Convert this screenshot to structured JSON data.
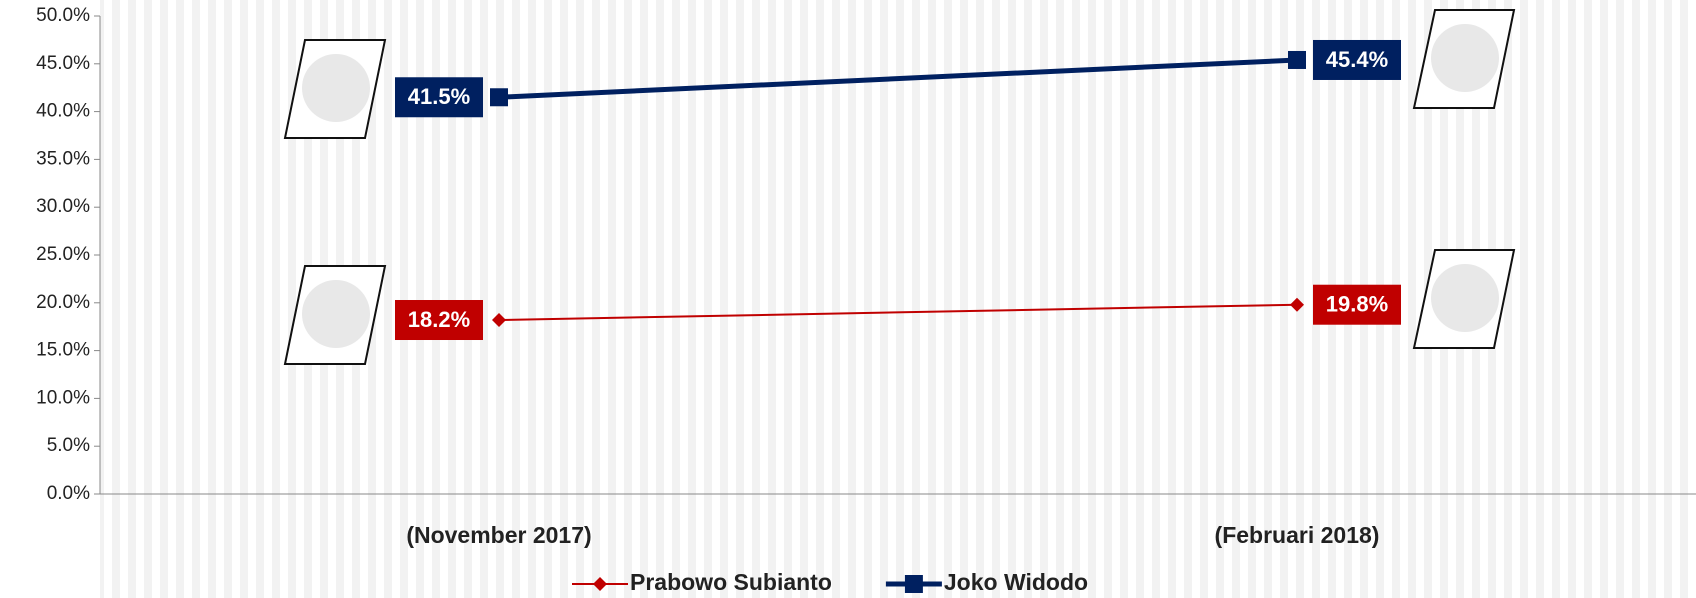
{
  "chart_data": {
    "type": "line",
    "categories": [
      "(November 2017)",
      "(Februari 2018)"
    ],
    "series": [
      {
        "name": "Prabowo Subianto",
        "color": "#c00000",
        "marker": "diamond",
        "values": [
          18.2,
          19.8
        ],
        "value_labels": [
          "18.2%",
          "19.8%"
        ]
      },
      {
        "name": "Joko Widodo",
        "color": "#002060",
        "marker": "square",
        "values": [
          41.5,
          45.4
        ],
        "value_labels": [
          "41.5%",
          "45.4%"
        ]
      }
    ],
    "ylim": [
      0,
      50
    ],
    "yticks": [
      {
        "value": 0,
        "label": "0.0%"
      },
      {
        "value": 5,
        "label": "5.0%"
      },
      {
        "value": 10,
        "label": "10.0%"
      },
      {
        "value": 15,
        "label": "15.0%"
      },
      {
        "value": 20,
        "label": "20.0%"
      },
      {
        "value": 25,
        "label": "25.0%"
      },
      {
        "value": 30,
        "label": "30.0%"
      },
      {
        "value": 35,
        "label": "35.0%"
      },
      {
        "value": 40,
        "label": "40.0%"
      },
      {
        "value": 45,
        "label": "45.0%"
      },
      {
        "value": 50,
        "label": "50.0%"
      }
    ],
    "legend": "bottom"
  }
}
